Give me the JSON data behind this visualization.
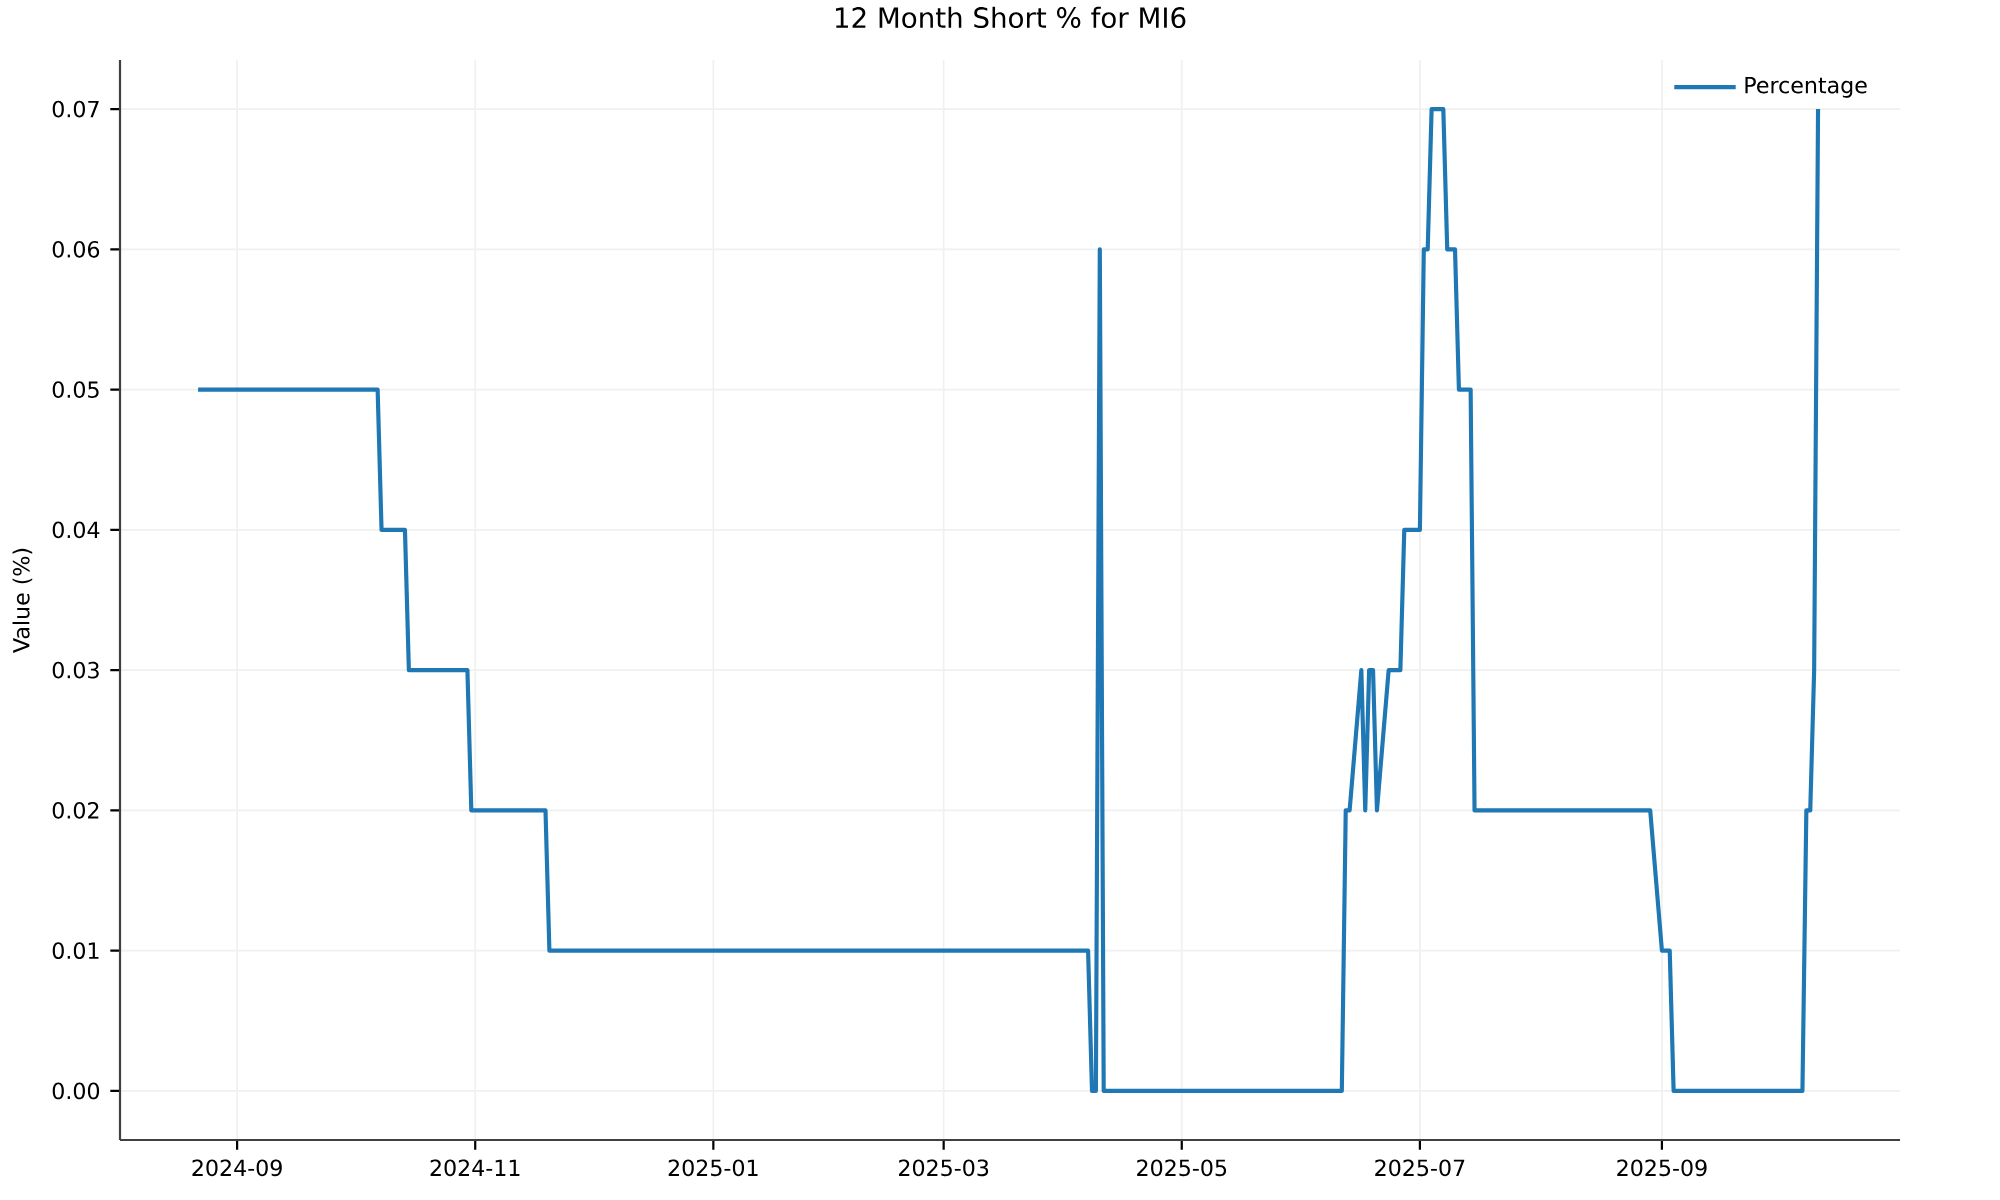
{
  "chart_data": {
    "type": "line",
    "title": "12 Month Short % for MI6",
    "ylabel": "Value (%)",
    "series": [
      {
        "name": "Percentage",
        "color": "#1f77b4",
        "x": [
          "2024-08-22",
          "2024-10-07",
          "2024-10-08",
          "2024-10-14",
          "2024-10-15",
          "2024-10-30",
          "2024-10-31",
          "2024-11-19",
          "2024-11-20",
          "2025-04-07",
          "2025-04-08",
          "2025-04-09",
          "2025-04-10",
          "2025-04-11",
          "2025-06-11",
          "2025-06-12",
          "2025-06-13",
          "2025-06-16",
          "2025-06-17",
          "2025-06-18",
          "2025-06-19",
          "2025-06-20",
          "2025-06-23",
          "2025-06-26",
          "2025-06-27",
          "2025-07-01",
          "2025-07-02",
          "2025-07-03",
          "2025-07-04",
          "2025-07-07",
          "2025-07-08",
          "2025-07-10",
          "2025-07-11",
          "2025-07-14",
          "2025-07-15",
          "2025-08-29",
          "2025-09-01",
          "2025-09-03",
          "2025-09-04",
          "2025-10-07",
          "2025-10-08",
          "2025-10-09",
          "2025-10-10",
          "2025-10-11"
        ],
        "values": [
          0.05,
          0.05,
          0.04,
          0.04,
          0.03,
          0.03,
          0.02,
          0.02,
          0.01,
          0.01,
          0,
          0,
          0.06,
          0,
          0,
          0.02,
          0.02,
          0.03,
          0.02,
          0.03,
          0.03,
          0.02,
          0.03,
          0.03,
          0.04,
          0.04,
          0.06,
          0.06,
          0.07,
          0.07,
          0.06,
          0.06,
          0.05,
          0.05,
          0.02,
          0.02,
          0.01,
          0.01,
          0,
          0,
          0.02,
          0.02,
          0.03,
          0.07
        ]
      }
    ],
    "xlim": [
      "2024-08-02",
      "2025-11-01"
    ],
    "ylim": [
      -0.0035,
      0.0735
    ],
    "xticks": [
      "2024-09",
      "2024-11",
      "2025-01",
      "2025-03",
      "2025-05",
      "2025-07",
      "2025-09"
    ],
    "yticks": [
      {
        "value": 0,
        "label": "0.00"
      },
      {
        "value": 0.01,
        "label": "0.01"
      },
      {
        "value": 0.02,
        "label": "0.02"
      },
      {
        "value": 0.03,
        "label": "0.03"
      },
      {
        "value": 0.04,
        "label": "0.04"
      },
      {
        "value": 0.05,
        "label": "0.05"
      },
      {
        "value": 0.06,
        "label": "0.06"
      },
      {
        "value": 0.07,
        "label": "0.07"
      }
    ],
    "grid": true,
    "legend": "top right",
    "line_style": "solid"
  }
}
